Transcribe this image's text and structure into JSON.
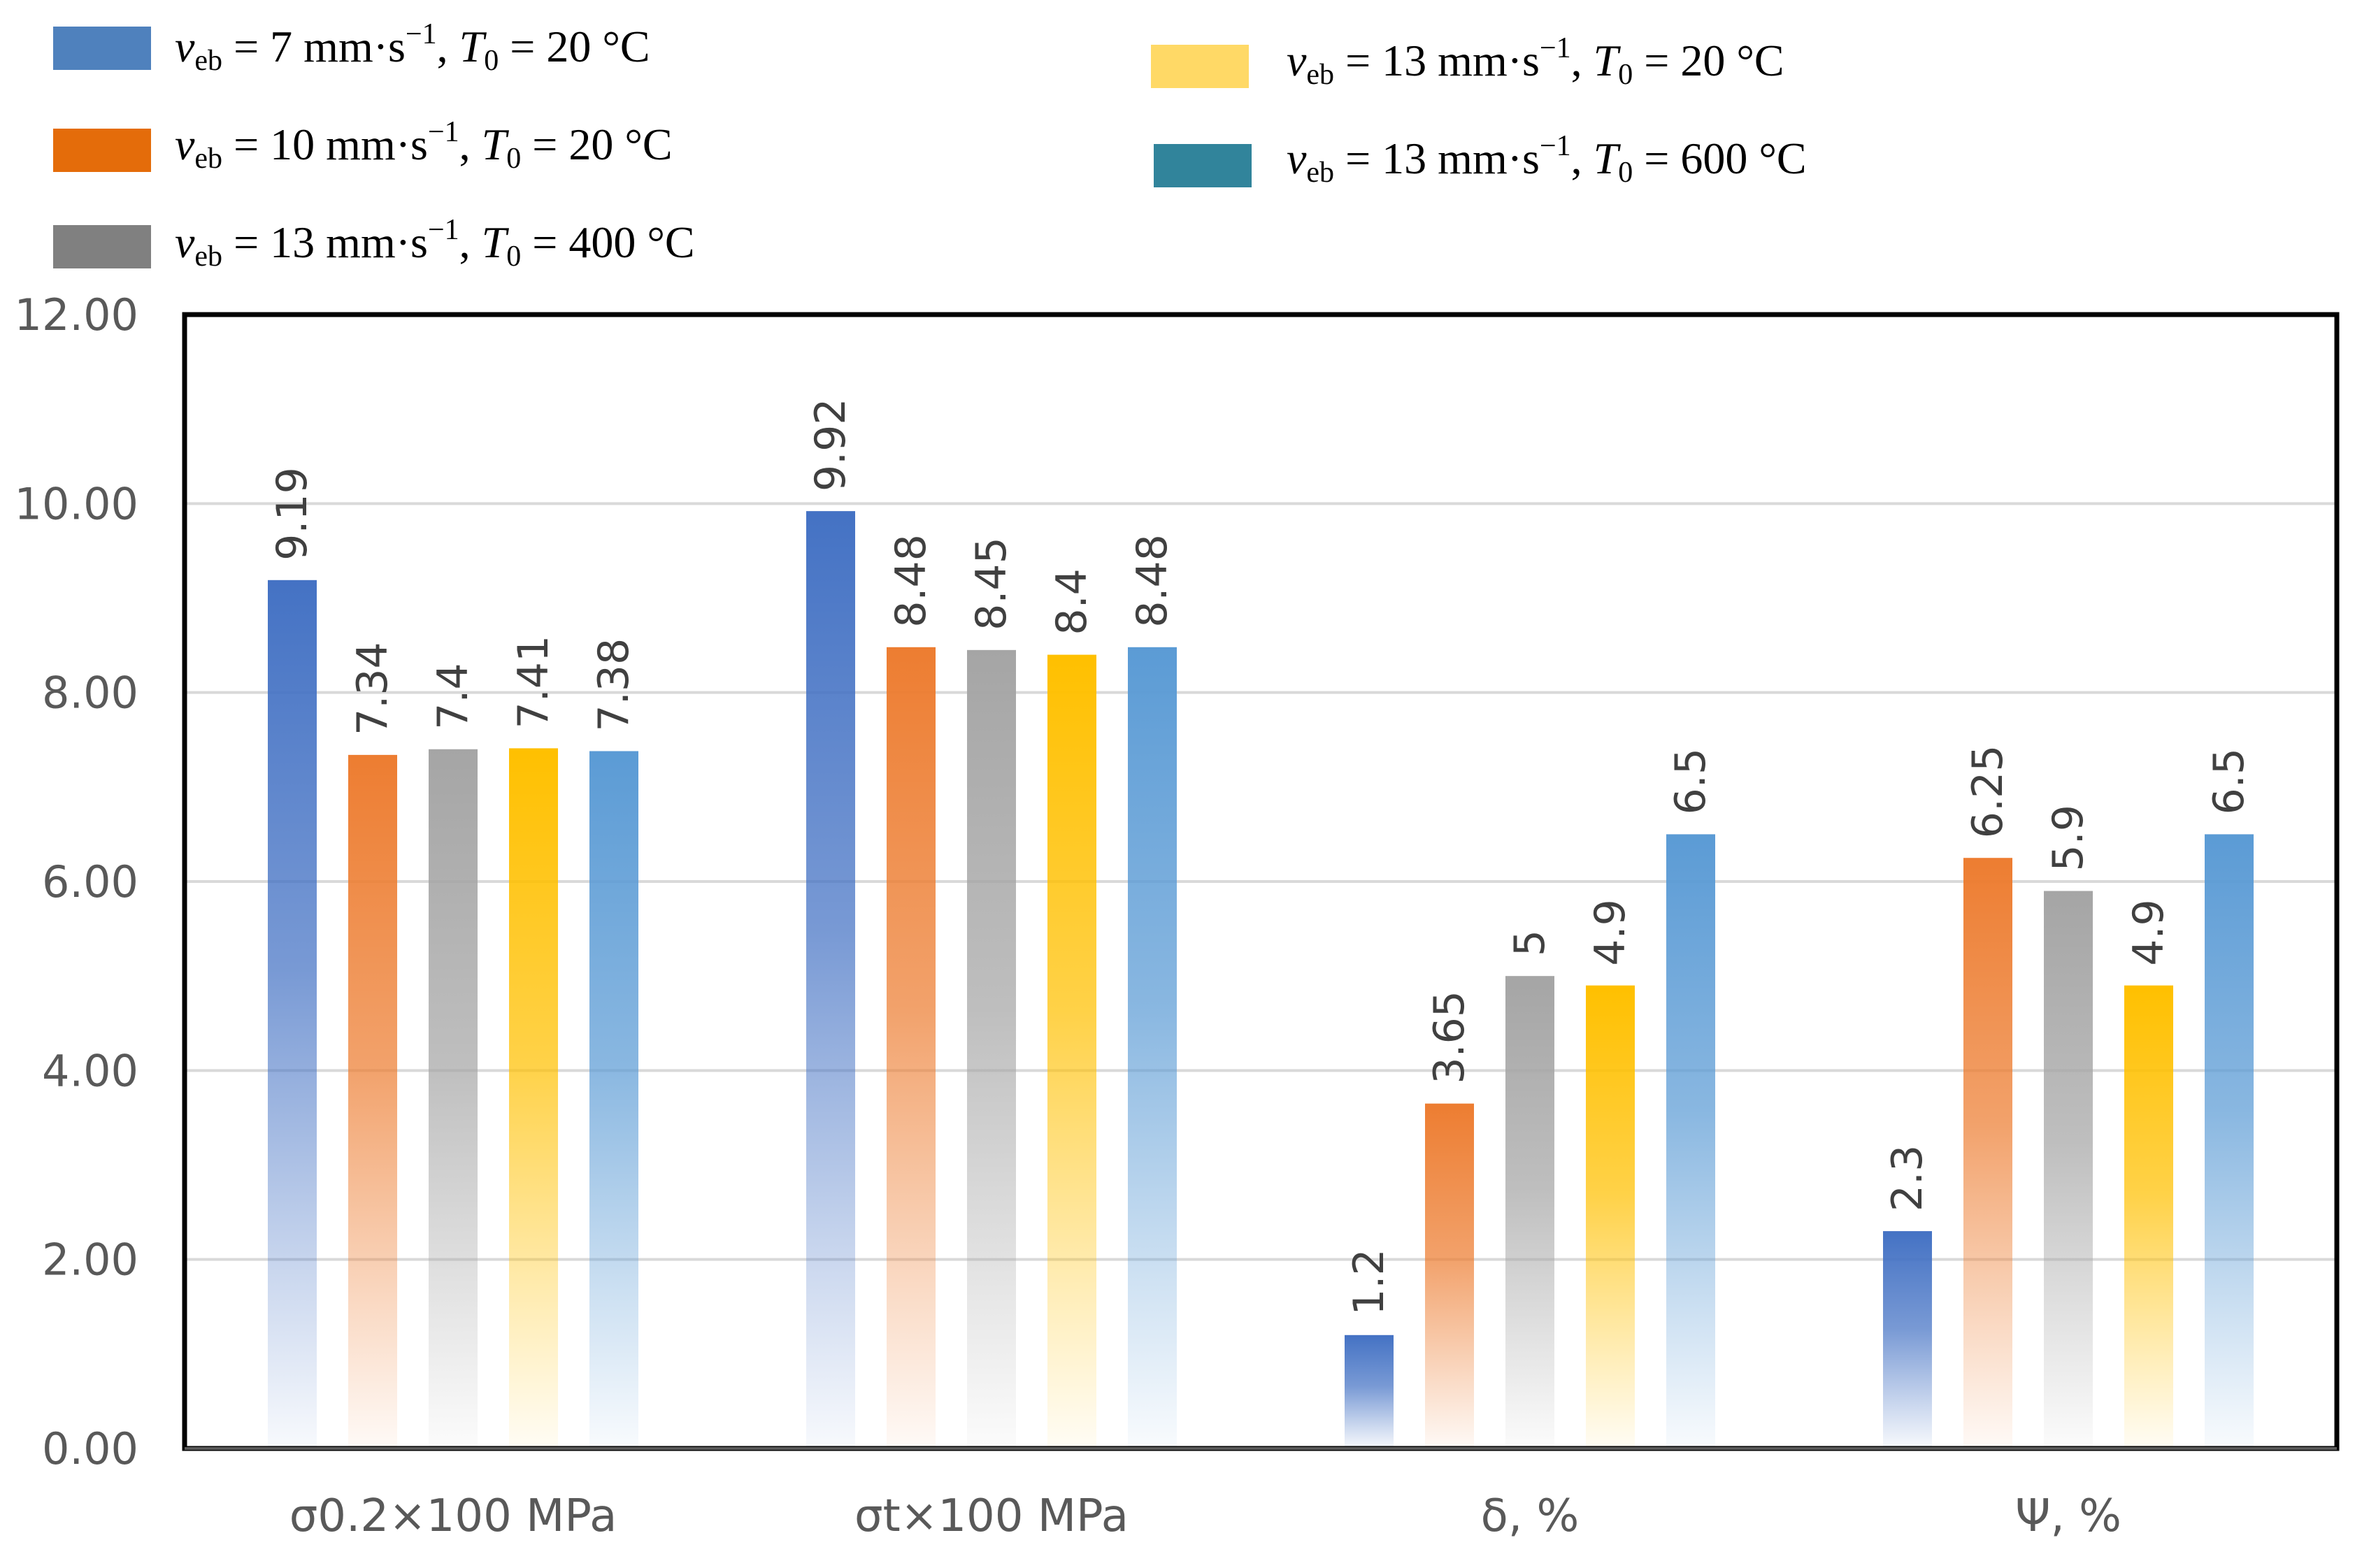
{
  "chart_data": {
    "type": "bar",
    "title": "",
    "xlabel": "",
    "ylabel": "",
    "ylim": [
      0,
      12
    ],
    "yticks": [
      "0.00",
      "2.00",
      "4.00",
      "6.00",
      "8.00",
      "10.00",
      "12.00"
    ],
    "grid": true,
    "legend_position": "top",
    "categories": [
      "σ0.2×100 MPa",
      "σt×100 MPa",
      "δ, %",
      "Ψ, %"
    ],
    "series": [
      {
        "name": "veb = 7 mm·s−1, T0 = 20 °C",
        "legend": {
          "v": "v",
          "sub1": "eb",
          "mid": " = 7 mm·s",
          "sup": "−1",
          "sep": ", ",
          "t": "T",
          "sub2": "0",
          "tail": " = 20 °C"
        },
        "color": "#4472c4",
        "legend_color": "#4f81bd",
        "values": [
          9.19,
          9.92,
          1.2,
          2.3
        ],
        "labels": [
          "9.19",
          "9.92",
          "1.2",
          "2.3"
        ]
      },
      {
        "name": "veb = 10 mm·s−1, T0 = 20 °C",
        "legend": {
          "v": "v",
          "sub1": "eb",
          "mid": " = 10 mm·s",
          "sup": "−1",
          "sep": ", ",
          "t": "T",
          "sub2": "0",
          "tail": " = 20 °C"
        },
        "color": "#ed7d31",
        "legend_color": "#e46c0a",
        "values": [
          7.34,
          8.48,
          3.65,
          6.25
        ],
        "labels": [
          "7.34",
          "8.48",
          "3.65",
          "6.25"
        ]
      },
      {
        "name": "veb = 13 mm·s−1, T0 = 400 °C",
        "legend": {
          "v": "v",
          "sub1": "eb",
          "mid": " = 13 mm·s",
          "sup": "−1",
          "sep": ", ",
          "t": "T",
          "sub2": "0",
          "tail": " = 400 °C"
        },
        "color": "#a5a5a5",
        "legend_color": "#808080",
        "values": [
          7.4,
          8.45,
          5,
          5.9
        ],
        "labels": [
          "7.4",
          "8.45",
          "5",
          "5.9"
        ]
      },
      {
        "name": "veb = 13 mm·s−1, T0 = 20 °C",
        "legend": {
          "v": "v",
          "sub1": "eb",
          "mid": " = 13 mm·s",
          "sup": "−1",
          "sep": ", ",
          "t": "T",
          "sub2": "0",
          "tail": " = 20 °C"
        },
        "color": "#ffc000",
        "legend_color": "#ffd966",
        "values": [
          7.41,
          8.4,
          4.9,
          4.9
        ],
        "labels": [
          "7.41",
          "8.4",
          "4.9",
          "4.9"
        ]
      },
      {
        "name": "veb = 13 mm·s−1, T0 = 600 °C",
        "legend": {
          "v": "v",
          "sub1": "eb",
          "mid": " = 13 mm·s",
          "sup": "−1",
          "sep": ", ",
          "t": "T",
          "sub2": "0",
          "tail": " = 600 °C"
        },
        "color": "#5b9bd5",
        "legend_color": "#31849b",
        "values": [
          7.38,
          8.48,
          6.5,
          6.5
        ],
        "labels": [
          "7.38",
          "8.48",
          "6.5",
          "6.5"
        ]
      }
    ]
  }
}
